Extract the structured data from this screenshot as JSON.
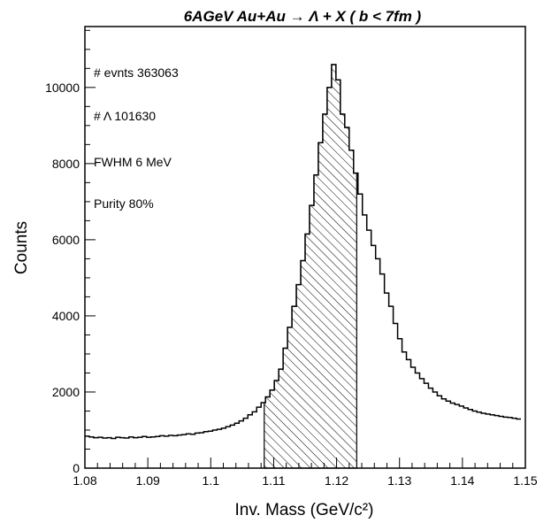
{
  "chart_data": {
    "type": "histogram",
    "title": "6AGeV Au+Au → Λ + X  ( b < 7fm )",
    "xlabel": "Inv. Mass (GeV/c²)",
    "ylabel": "Counts",
    "xlim": [
      1.08,
      1.15
    ],
    "ylim": [
      0,
      11600
    ],
    "x_ticks": [
      1.08,
      1.09,
      1.1,
      1.11,
      1.12,
      1.13,
      1.14,
      1.15
    ],
    "x_tick_labels": [
      "1.08",
      "1.09",
      "1.1",
      "1.11",
      "1.12",
      "1.13",
      "1.14",
      "1.15"
    ],
    "y_ticks": [
      0,
      2000,
      4000,
      6000,
      8000,
      10000
    ],
    "y_tick_labels": [
      "0",
      "2000",
      "4000",
      "6000",
      "8000",
      "10000"
    ],
    "bin_width": 0.0007,
    "bin_start": 1.08,
    "values": [
      840,
      820,
      800,
      810,
      790,
      800,
      780,
      810,
      800,
      790,
      820,
      800,
      810,
      830,
      810,
      820,
      830,
      850,
      840,
      860,
      850,
      870,
      880,
      900,
      890,
      920,
      930,
      960,
      970,
      1000,
      1020,
      1050,
      1090,
      1130,
      1180,
      1240,
      1310,
      1400,
      1480,
      1600,
      1720,
      1870,
      2050,
      2300,
      2600,
      3150,
      3700,
      4250,
      4820,
      5450,
      6150,
      6900,
      7700,
      8550,
      9300,
      10000,
      10600,
      10200,
      9300,
      8950,
      8350,
      7750,
      7200,
      6650,
      6250,
      5850,
      5500,
      5100,
      4600,
      4250,
      3800,
      3400,
      3050,
      2850,
      2650,
      2500,
      2350,
      2230,
      2100,
      2000,
      1900,
      1820,
      1760,
      1710,
      1670,
      1630,
      1580,
      1540,
      1500,
      1470,
      1440,
      1420,
      1400,
      1380,
      1360,
      1340,
      1330,
      1310,
      1290
    ],
    "shaded_range": [
      1.1085,
      1.1232
    ],
    "annotations": [
      "# evnts 363063",
      "# Λ 101630",
      "FWHM 6 MeV",
      "Purity 80%"
    ]
  }
}
